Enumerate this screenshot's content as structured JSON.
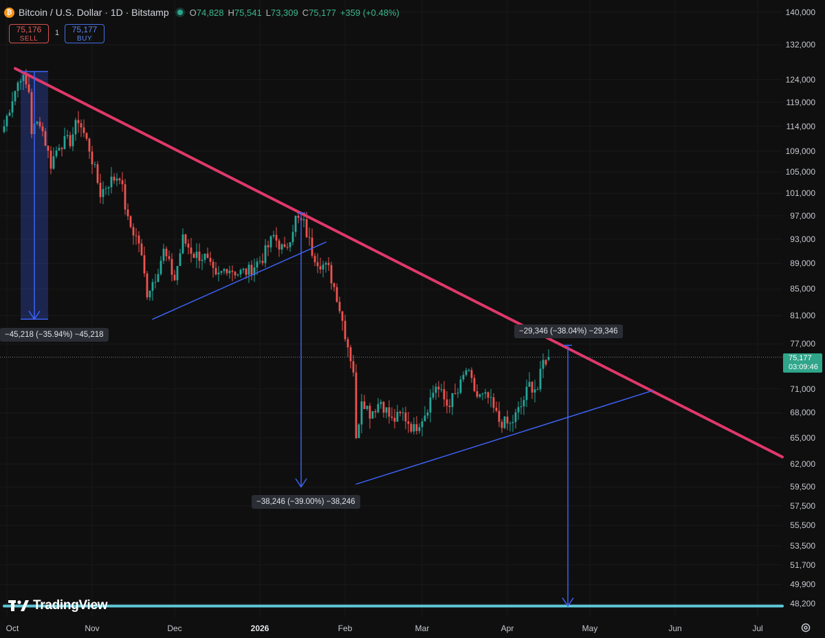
{
  "header": {
    "symbol_title": "Bitcoin / U.S. Dollar · 1D · Bitstamp",
    "icon": "bitcoin-icon",
    "ohlc": {
      "o_label": "O",
      "o": "74,828",
      "h_label": "H",
      "h": "75,541",
      "l_label": "L",
      "l": "73,309",
      "c_label": "C",
      "c": "75,177",
      "change": "+359 (+0.48%)"
    }
  },
  "trade": {
    "sell_price": "75,176",
    "sell_label": "SELL",
    "quantity": "1",
    "buy_price": "75,177",
    "buy_label": "BUY"
  },
  "price_tag": {
    "price": "75,177",
    "countdown": "03:09:46"
  },
  "logo": {
    "text": "TradingView"
  },
  "colors": {
    "background": "#0f0f0f",
    "up": "#26a69a",
    "down": "#ef5350",
    "resistance": "#e0386a",
    "support": "#3d62f5",
    "measure": "#3d62f5",
    "baseline": "#5fc8d8"
  },
  "chart_data": {
    "type": "candlestick",
    "y_scale": "log",
    "ylim": [
      47500,
      141000
    ],
    "y_ticks": [
      "140,000",
      "132,000",
      "124,000",
      "119,000",
      "114,000",
      "109,000",
      "105,000",
      "101,000",
      "97,000",
      "93,000",
      "89,000",
      "85,000",
      "81,000",
      "77,000",
      "71,000",
      "68,000",
      "65,000",
      "62,000",
      "59,500",
      "57,500",
      "55,500",
      "53,500",
      "51,700",
      "49,900",
      "48,200"
    ],
    "x_ticks": [
      {
        "label": "Oct",
        "date": "2025-10-01"
      },
      {
        "label": "Nov",
        "date": "2025-11-01"
      },
      {
        "label": "Dec",
        "date": "2025-12-01"
      },
      {
        "label": "2026",
        "date": "2026-01-01",
        "bold": true
      },
      {
        "label": "Feb",
        "date": "2026-02-01"
      },
      {
        "label": "Mar",
        "date": "2026-03-01"
      },
      {
        "label": "Apr",
        "date": "2026-04-01"
      },
      {
        "label": "May",
        "date": "2026-05-01"
      },
      {
        "label": "Jun",
        "date": "2026-06-01"
      },
      {
        "label": "Jul",
        "date": "2026-07-01"
      }
    ],
    "x_range": [
      "2025-09-30",
      "2026-07-10"
    ],
    "closes": [
      {
        "date": "2025-09-30",
        "close": 114000
      },
      {
        "date": "2025-10-03",
        "close": 120000
      },
      {
        "date": "2025-10-06",
        "close": 125000
      },
      {
        "date": "2025-10-09",
        "close": 121500
      },
      {
        "date": "2025-10-10",
        "close": 113000
      },
      {
        "date": "2025-10-13",
        "close": 115200
      },
      {
        "date": "2025-10-17",
        "close": 106500
      },
      {
        "date": "2025-10-20",
        "close": 110500
      },
      {
        "date": "2025-10-24",
        "close": 111000
      },
      {
        "date": "2025-10-27",
        "close": 115500
      },
      {
        "date": "2025-10-31",
        "close": 109500
      },
      {
        "date": "2025-11-04",
        "close": 101000
      },
      {
        "date": "2025-11-07",
        "close": 103000
      },
      {
        "date": "2025-11-11",
        "close": 104500
      },
      {
        "date": "2025-11-14",
        "close": 96000
      },
      {
        "date": "2025-11-18",
        "close": 92500
      },
      {
        "date": "2025-11-21",
        "close": 84500
      },
      {
        "date": "2025-11-24",
        "close": 87000
      },
      {
        "date": "2025-11-27",
        "close": 91000
      },
      {
        "date": "2025-12-01",
        "close": 86500
      },
      {
        "date": "2025-12-04",
        "close": 93000
      },
      {
        "date": "2025-12-08",
        "close": 90500
      },
      {
        "date": "2025-12-12",
        "close": 90000
      },
      {
        "date": "2025-12-16",
        "close": 86500
      },
      {
        "date": "2025-12-20",
        "close": 88500
      },
      {
        "date": "2025-12-24",
        "close": 87500
      },
      {
        "date": "2025-12-28",
        "close": 87800
      },
      {
        "date": "2026-01-02",
        "close": 90000
      },
      {
        "date": "2026-01-06",
        "close": 93500
      },
      {
        "date": "2026-01-10",
        "close": 90800
      },
      {
        "date": "2026-01-14",
        "close": 96500
      },
      {
        "date": "2026-01-17",
        "close": 95500
      },
      {
        "date": "2026-01-20",
        "close": 91000
      },
      {
        "date": "2026-01-22",
        "close": 89500
      },
      {
        "date": "2026-01-26",
        "close": 88000
      },
      {
        "date": "2026-01-29",
        "close": 84000
      },
      {
        "date": "2026-02-01",
        "close": 78500
      },
      {
        "date": "2026-02-04",
        "close": 73500
      },
      {
        "date": "2026-02-05",
        "close": 64500
      },
      {
        "date": "2026-02-07",
        "close": 70000
      },
      {
        "date": "2026-02-10",
        "close": 68000
      },
      {
        "date": "2026-02-14",
        "close": 69500
      },
      {
        "date": "2026-02-18",
        "close": 67000
      },
      {
        "date": "2026-02-22",
        "close": 67800
      },
      {
        "date": "2026-02-26",
        "close": 66000
      },
      {
        "date": "2026-03-02",
        "close": 68000
      },
      {
        "date": "2026-03-06",
        "close": 71500
      },
      {
        "date": "2026-03-10",
        "close": 69000
      },
      {
        "date": "2026-03-14",
        "close": 70500
      },
      {
        "date": "2026-03-17",
        "close": 73500
      },
      {
        "date": "2026-03-21",
        "close": 70000
      },
      {
        "date": "2026-03-25",
        "close": 69800
      },
      {
        "date": "2026-03-29",
        "close": 67000
      },
      {
        "date": "2026-04-02",
        "close": 66500
      },
      {
        "date": "2026-04-06",
        "close": 68800
      },
      {
        "date": "2026-04-09",
        "close": 71500
      },
      {
        "date": "2026-04-12",
        "close": 71000
      },
      {
        "date": "2026-04-14",
        "close": 74500
      },
      {
        "date": "2026-04-16",
        "close": 75177
      }
    ],
    "current_price": 75177,
    "trendlines": [
      {
        "name": "resistance",
        "from": {
          "date": "2025-10-04",
          "price": 126500
        },
        "to": {
          "date": "2026-07-10",
          "price": 62800
        },
        "width": 4,
        "color": "#e0386a"
      },
      {
        "name": "support-1",
        "from": {
          "date": "2025-11-23",
          "price": 80500
        },
        "to": {
          "date": "2026-01-25",
          "price": 92500
        },
        "width": 1.5,
        "color": "#3d62f5"
      },
      {
        "name": "support-2",
        "from": {
          "date": "2026-02-05",
          "price": 59800
        },
        "to": {
          "date": "2026-05-24",
          "price": 70800
        },
        "width": 1.5,
        "color": "#3d62f5"
      },
      {
        "name": "baseline",
        "from": {
          "date": "2025-09-30",
          "price": 48000
        },
        "to": {
          "date": "2026-07-10",
          "price": 48000
        },
        "width": 4,
        "color": "#5fc8d8"
      }
    ],
    "measurements": [
      {
        "name": "drop-1",
        "date": "2025-10-11",
        "from_price": 125800,
        "to_price": 80500,
        "label": "−45,218 (−35.94%) −45,218",
        "shaded": true
      },
      {
        "name": "drop-2",
        "date": "2026-01-16",
        "from_price": 97500,
        "to_price": 59500,
        "label": "−38,246 (−39.00%) −38,246",
        "shaded": false
      },
      {
        "name": "drop-3",
        "date": "2026-04-23",
        "from_price": 76800,
        "to_price": 48000,
        "label": "−29,346 (−38.04%) −29,346",
        "shaded": false
      }
    ]
  }
}
